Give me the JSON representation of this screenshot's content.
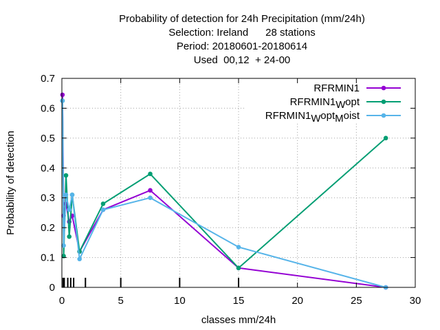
{
  "chart_data": {
    "type": "line",
    "title_lines": [
      "Probability of detection  for 24h Precipitation (mm/24h)",
      "Selection: Ireland      28 stations",
      "Period: 20180601-20180614",
      "Used  00,12  + 24-00"
    ],
    "xlabel": "classes mm/24h",
    "ylabel": "Probability of detection",
    "xlim": [
      0,
      30
    ],
    "ylim": [
      0,
      0.7
    ],
    "xticks": [
      0,
      5,
      10,
      15,
      20,
      25,
      30
    ],
    "yticks": [
      0,
      0.1,
      0.2,
      0.3,
      0.4,
      0.5,
      0.6,
      0.7
    ],
    "grid": true,
    "legend_position": "top-right",
    "class_markers": [
      0.1,
      0.2,
      0.5,
      0.75,
      1,
      2,
      5,
      10,
      15
    ],
    "series": [
      {
        "name": "RFRMIN1",
        "name_main": "RFRMIN1",
        "name_parts": [],
        "color": "#9400d3",
        "x": [
          0.05,
          0.15,
          0.35,
          0.625,
          0.875,
          1.5,
          3.5,
          7.5,
          15,
          27.5
        ],
        "y": [
          0.645,
          0.24,
          0.28,
          0.22,
          0.24,
          0.12,
          0.26,
          0.325,
          0.065,
          0.0
        ]
      },
      {
        "name": "RFRMIN1 W opt",
        "name_main": "RFRMIN1",
        "name_parts": [
          {
            "text": "W",
            "sub": true
          },
          {
            "text": "opt",
            "sub": false
          }
        ],
        "color": "#009e73",
        "x": [
          0.05,
          0.15,
          0.35,
          0.625,
          0.875,
          1.5,
          3.5,
          7.5,
          15,
          27.5
        ],
        "y": [
          0.625,
          0.105,
          0.375,
          0.17,
          0.31,
          0.12,
          0.28,
          0.38,
          0.065,
          0.5
        ]
      },
      {
        "name": "RFRMIN1 W opt M oist",
        "name_main": "RFRMIN1",
        "name_parts": [
          {
            "text": "W",
            "sub": true
          },
          {
            "text": "opt",
            "sub": false
          },
          {
            "text": "M",
            "sub": true
          },
          {
            "text": "oist",
            "sub": false
          }
        ],
        "color": "#56b4e9",
        "x": [
          0.05,
          0.15,
          0.35,
          0.625,
          0.875,
          1.5,
          3.5,
          7.5,
          15,
          27.5
        ],
        "y": [
          0.625,
          0.14,
          0.31,
          0.26,
          0.31,
          0.095,
          0.26,
          0.3,
          0.135,
          0.0
        ]
      }
    ]
  }
}
